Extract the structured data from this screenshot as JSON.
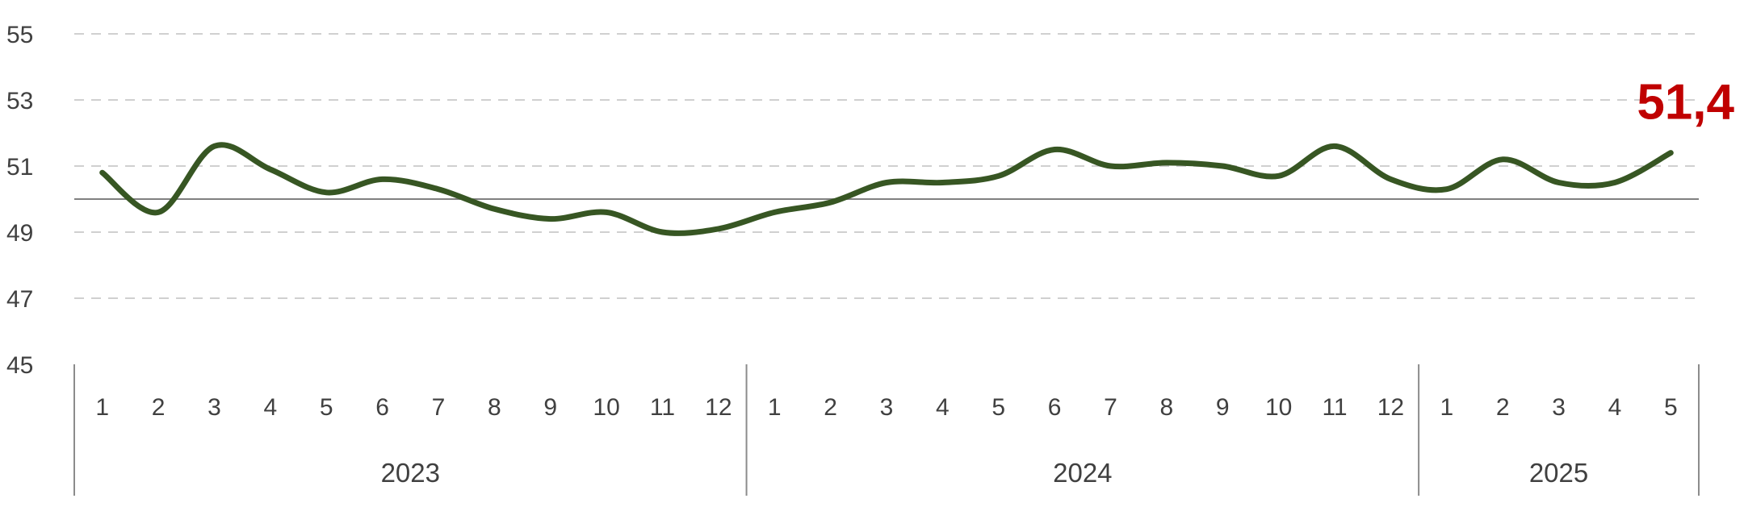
{
  "chart_data": {
    "type": "line",
    "ylim": [
      45,
      55
    ],
    "yticks": [
      "55",
      "53",
      "51",
      "49",
      "47",
      "45"
    ],
    "reference_value": 50,
    "grid": true,
    "years": [
      {
        "label": "2023",
        "months": [
          "1",
          "2",
          "3",
          "4",
          "5",
          "6",
          "7",
          "8",
          "9",
          "10",
          "11",
          "12"
        ]
      },
      {
        "label": "2024",
        "months": [
          "1",
          "2",
          "3",
          "4",
          "5",
          "6",
          "7",
          "8",
          "9",
          "10",
          "11",
          "12"
        ]
      },
      {
        "label": "2025",
        "months": [
          "1",
          "2",
          "3",
          "4",
          "5"
        ]
      }
    ],
    "values": [
      50.8,
      49.6,
      51.6,
      50.9,
      50.2,
      50.6,
      50.3,
      49.7,
      49.4,
      49.6,
      49.0,
      49.1,
      49.6,
      49.9,
      50.5,
      50.5,
      50.7,
      51.5,
      51.0,
      51.1,
      51.0,
      50.7,
      51.6,
      50.6,
      50.3,
      51.2,
      50.5,
      50.5,
      51.4
    ],
    "line_color": "#375623",
    "last_value_label": "51,4",
    "last_value_color": "#c00000"
  }
}
